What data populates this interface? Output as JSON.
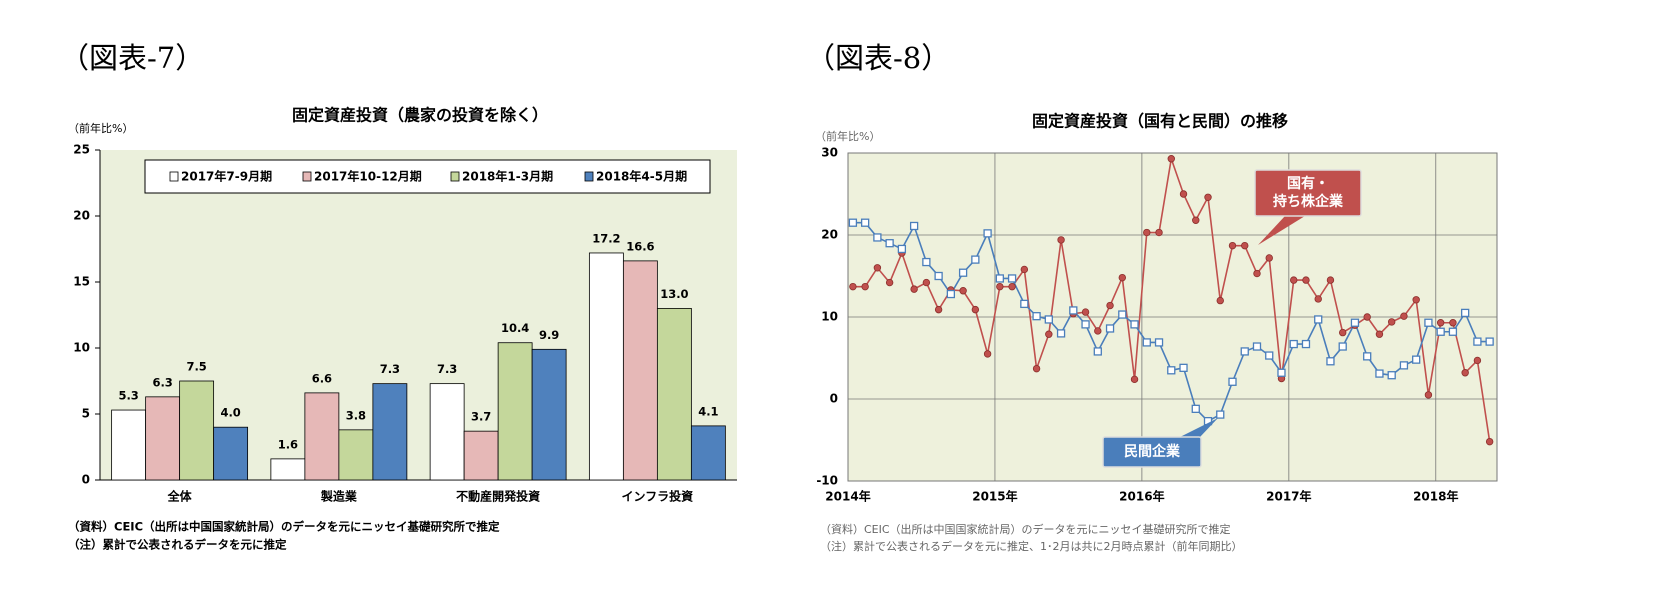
{
  "chart_data": [
    {
      "type": "bar",
      "figure_label": "（図表-7）",
      "title": "固定資産投資（農家の投資を除く）",
      "y_label": "（前年比%）",
      "categories": [
        "全体",
        "製造業",
        "不動産開発投資",
        "インフラ投資"
      ],
      "series": [
        {
          "name": "2017年7-9月期",
          "color": "#ffffff",
          "values": [
            5.3,
            1.6,
            7.3,
            17.2
          ],
          "value_labels": [
            "5.3",
            "1.6",
            "7.3",
            "17.2"
          ]
        },
        {
          "name": "2017年10-12月期",
          "color": "#e6b8b7",
          "values": [
            6.3,
            6.6,
            3.7,
            16.6
          ],
          "value_labels": [
            "6.3",
            "6.6",
            "3.7",
            "16.6"
          ]
        },
        {
          "name": "2018年1-3月期",
          "color": "#c4d79b",
          "values": [
            7.5,
            3.8,
            10.4,
            13.0
          ],
          "value_labels": [
            "7.5",
            "3.8",
            "10.4",
            "13.0"
          ]
        },
        {
          "name": "2018年4-5月期",
          "color": "#4f81bd",
          "values": [
            4.0,
            7.3,
            9.9,
            4.1
          ],
          "value_labels": [
            "4.0",
            "7.3",
            "9.9",
            "4.1"
          ]
        }
      ],
      "ylim": [
        0,
        25
      ],
      "yticks": [
        0,
        5,
        10,
        15,
        20,
        25
      ],
      "grid": false,
      "legend": "top",
      "notes": [
        "（資料）CEIC（出所は中国国家統計局）のデータを元にニッセイ基礎研究所で推定",
        "（注）累計で公表されるデータを元に推定"
      ]
    },
    {
      "type": "line",
      "figure_label": "（図表-8）",
      "title": "固定資産投資（国有と民間）の推移",
      "y_label": "（前年比%）",
      "categories": [
        "2014年",
        null,
        null,
        null,
        null,
        null,
        null,
        null,
        null,
        null,
        null,
        null,
        "2015年",
        null,
        null,
        null,
        null,
        null,
        null,
        null,
        null,
        null,
        null,
        null,
        "2016年",
        null,
        null,
        null,
        null,
        null,
        null,
        null,
        null,
        null,
        null,
        null,
        "2017年",
        null,
        null,
        null,
        null,
        null,
        null,
        null,
        null,
        null,
        null,
        null,
        "2018年",
        null,
        null,
        null,
        null
      ],
      "series": [
        {
          "name": "国有・\n持ち株企業",
          "color": "#c0504d",
          "marker": "circle",
          "values": [
            13.7,
            13.7,
            16.0,
            14.2,
            17.8,
            13.4,
            14.2,
            10.9,
            13.3,
            13.2,
            10.9,
            5.5,
            13.7,
            13.7,
            15.8,
            3.7,
            7.9,
            19.4,
            10.4,
            10.6,
            8.3,
            11.4,
            14.8,
            2.4,
            20.3,
            20.3,
            29.3,
            25.0,
            21.8,
            24.6,
            12.0,
            18.7,
            18.7,
            15.3,
            17.2,
            2.5,
            14.5,
            14.5,
            12.2,
            14.5,
            8.1,
            9.0,
            10.0,
            7.9,
            9.4,
            10.1,
            12.1,
            0.5,
            9.3,
            9.3,
            3.2,
            4.7,
            -5.2
          ]
        },
        {
          "name": "民間企業",
          "color": "#4a7ebb",
          "marker": "square",
          "values": [
            21.5,
            21.5,
            19.7,
            19.0,
            18.3,
            21.1,
            16.7,
            15.0,
            12.8,
            15.4,
            17.0,
            20.2,
            14.7,
            14.7,
            11.6,
            10.1,
            9.7,
            8.0,
            10.8,
            9.1,
            5.8,
            8.6,
            10.3,
            9.1,
            6.9,
            6.9,
            3.5,
            3.8,
            -1.2,
            -2.7,
            -1.9,
            2.1,
            5.8,
            6.4,
            5.3,
            3.2,
            6.7,
            6.7,
            9.7,
            4.6,
            6.4,
            9.3,
            5.2,
            3.1,
            2.9,
            4.1,
            4.8,
            9.3,
            8.2,
            8.2,
            10.5,
            7.0,
            7.0
          ]
        }
      ],
      "ylim": [
        -10,
        30
      ],
      "yticks": [
        -10,
        0,
        10,
        20,
        30
      ],
      "grid": true,
      "notes": [
        "（資料）CEIC（出所は中国国家統計局）のデータを元にニッセイ基礎研究所で推定",
        "（注）累計で公表されるデータを元に推定、1･2月は共に2月時点累計（前年同期比）"
      ]
    }
  ]
}
